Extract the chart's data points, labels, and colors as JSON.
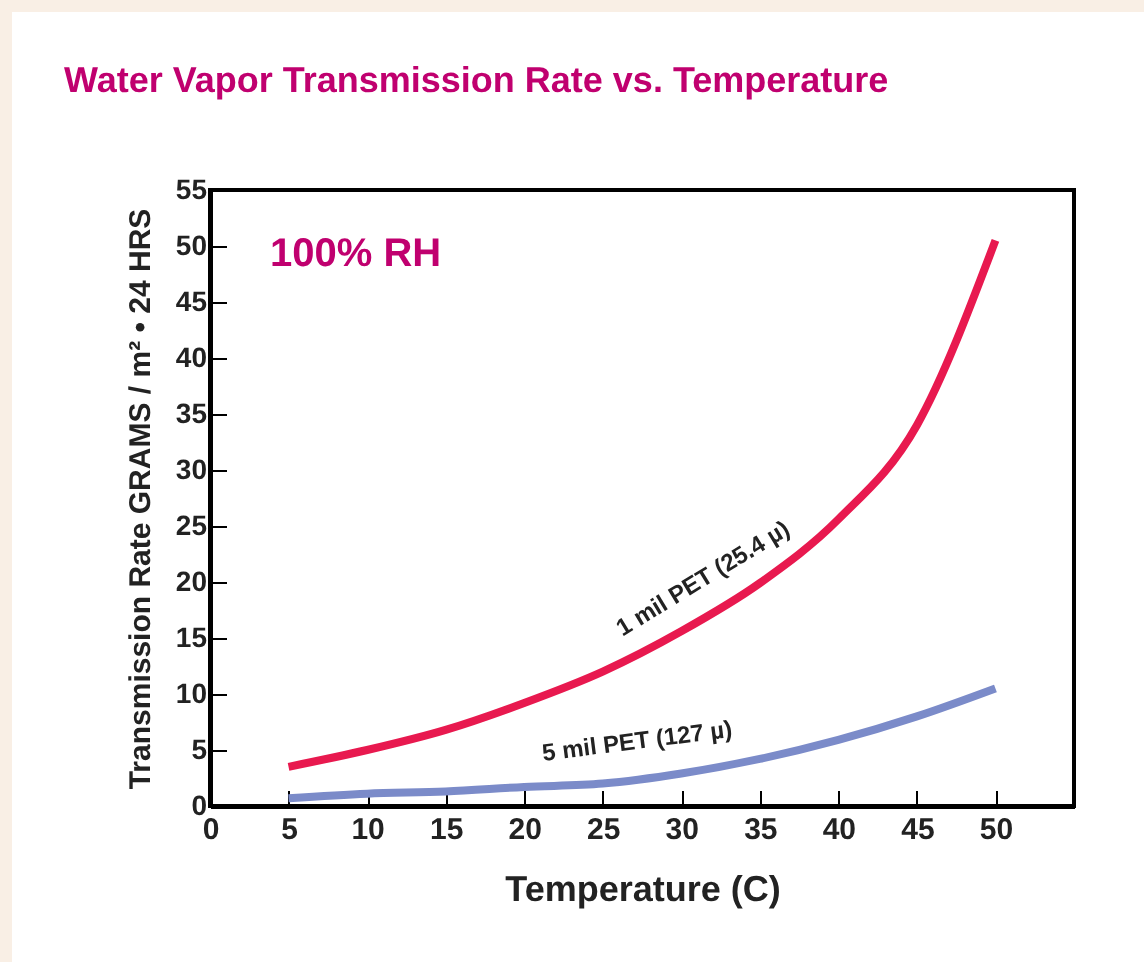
{
  "chart_data": {
    "type": "line",
    "title": "Water Vapor Transmission Rate vs. Temperature",
    "xlabel": "Temperature (C)",
    "ylabel": "Transmission Rate GRAMS / m² • 24 HRS",
    "annotations": [
      "100% RH"
    ],
    "x": [
      5,
      10,
      15,
      20,
      25,
      30,
      35,
      40,
      45,
      50
    ],
    "series": [
      {
        "name": "1 mil PET (25.4 µ)",
        "color": "#e8194f",
        "values": [
          3.5,
          5.0,
          6.8,
          9.2,
          12.0,
          15.6,
          19.9,
          25.6,
          34.0,
          50.5
        ]
      },
      {
        "name": "5 mil PET (127 µ)",
        "color": "#7b8bc9",
        "values": [
          0.7,
          1.1,
          1.3,
          1.7,
          2.0,
          2.9,
          4.2,
          5.9,
          8.0,
          10.5
        ]
      }
    ],
    "xlim": [
      0,
      55
    ],
    "xticks": [
      0,
      5,
      10,
      15,
      20,
      25,
      30,
      35,
      40,
      45,
      50
    ],
    "ylim": [
      0,
      55
    ],
    "yticks": [
      0,
      5,
      10,
      15,
      20,
      25,
      30,
      35,
      40,
      45,
      50,
      55
    ],
    "grid": false,
    "legend": false
  }
}
